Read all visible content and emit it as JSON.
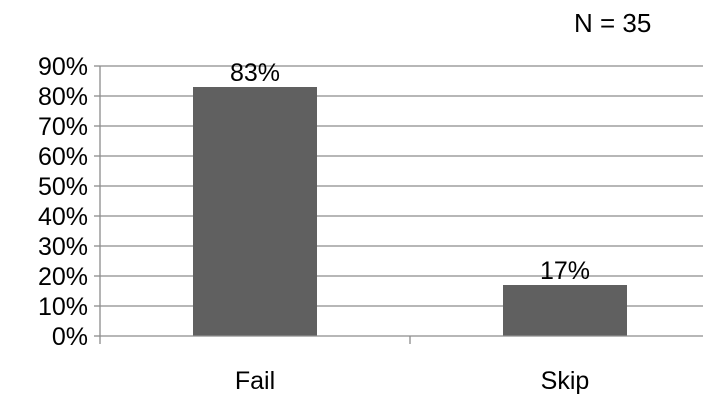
{
  "chart_data": {
    "type": "bar",
    "title": "",
    "xlabel": "",
    "ylabel": "",
    "annotation": "N = 35",
    "categories": [
      "Fail",
      "Skip"
    ],
    "values": [
      83,
      17
    ],
    "data_labels": [
      "83%",
      "17%"
    ],
    "ylim": [
      0,
      90
    ],
    "yticks": [
      0,
      10,
      20,
      30,
      40,
      50,
      60,
      70,
      80,
      90
    ],
    "ytick_labels": [
      "0%",
      "10%",
      "20%",
      "30%",
      "40%",
      "50%",
      "60%",
      "70%",
      "80%",
      "90%"
    ],
    "grid": true,
    "legend": "none",
    "colors": {
      "bar": "#606060",
      "grid": "#8c8c8c",
      "axis": "#8c8c8c",
      "text": "#000000"
    }
  }
}
